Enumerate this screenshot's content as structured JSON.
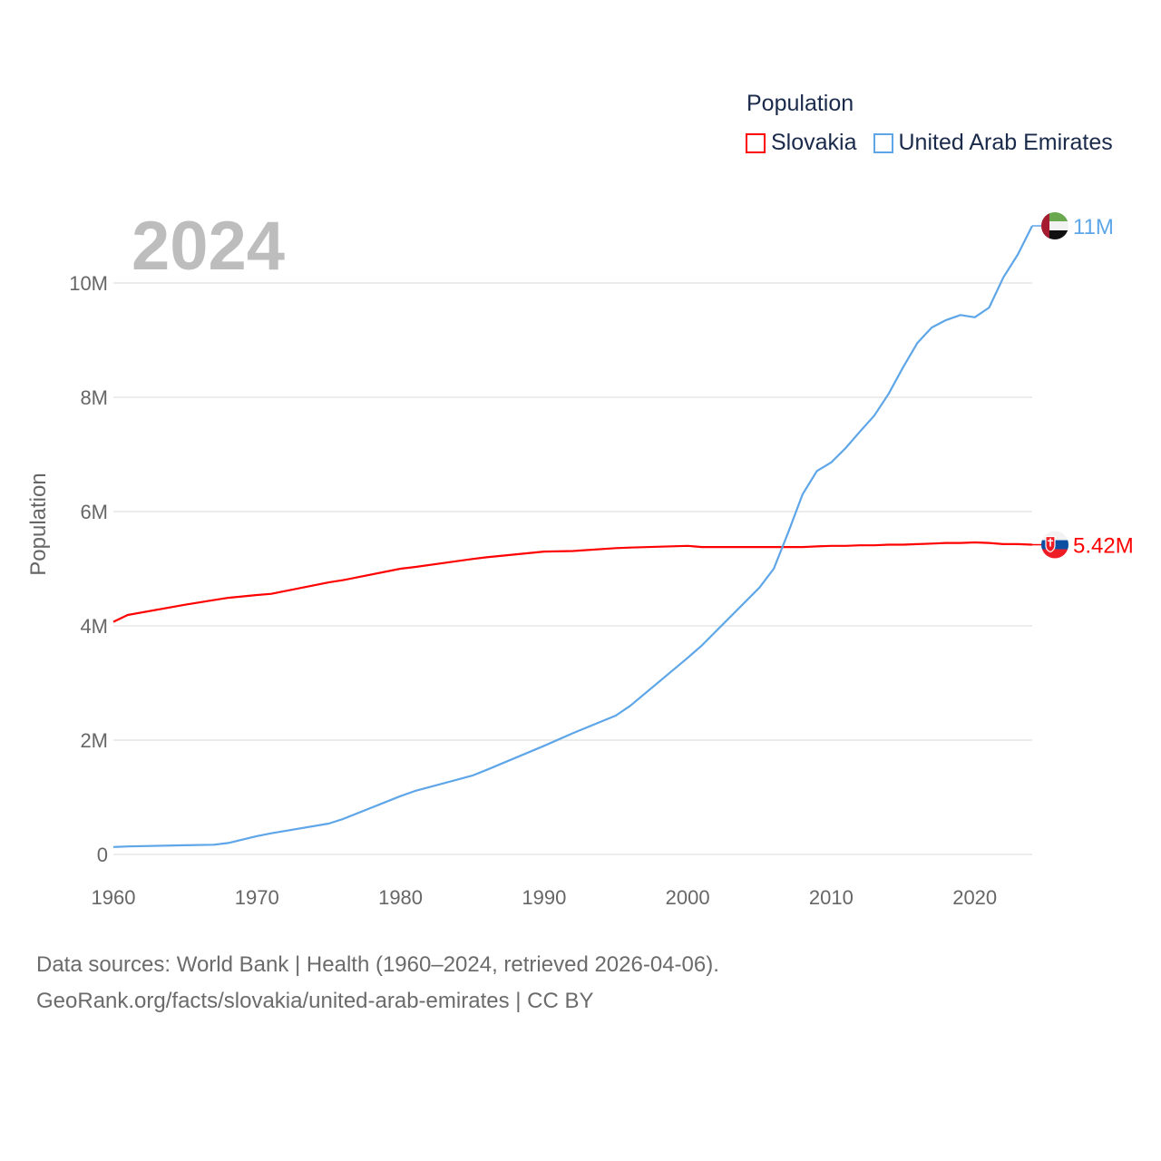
{
  "chart_data": {
    "type": "line",
    "title": "",
    "legend_title": "Population",
    "legend_position": "top-right",
    "current_year_label": "2024",
    "xlabel": "",
    "ylabel": "Population",
    "xlim": [
      1960,
      2024
    ],
    "ylim": [
      0,
      10000000
    ],
    "grid": true,
    "x_ticks": [
      "1960",
      "1970",
      "1980",
      "1990",
      "2000",
      "2010",
      "2020"
    ],
    "y_ticks": [
      {
        "value": 0,
        "label": "0"
      },
      {
        "value": 2000000,
        "label": "2M"
      },
      {
        "value": 4000000,
        "label": "4M"
      },
      {
        "value": 6000000,
        "label": "6M"
      },
      {
        "value": 8000000,
        "label": "8M"
      },
      {
        "value": 10000000,
        "label": "10M"
      }
    ],
    "x": [
      1960,
      1961,
      1965,
      1967,
      1968,
      1970,
      1971,
      1975,
      1976,
      1980,
      1981,
      1985,
      1986,
      1990,
      1992,
      1995,
      1996,
      2000,
      2001,
      2005,
      2006,
      2007,
      2008,
      2009,
      2010,
      2011,
      2012,
      2013,
      2014,
      2015,
      2016,
      2017,
      2018,
      2019,
      2020,
      2021,
      2022,
      2023,
      2024
    ],
    "series": [
      {
        "name": "Slovakia",
        "color": "#ff0000",
        "end_label": "5.42M",
        "flag": "slovakia-flag",
        "values": [
          4.07,
          4.19,
          4.37,
          4.45,
          4.49,
          4.54,
          4.56,
          4.76,
          4.8,
          5.0,
          5.03,
          5.17,
          5.2,
          5.3,
          5.31,
          5.36,
          5.37,
          5.4,
          5.38,
          5.38,
          5.38,
          5.38,
          5.38,
          5.39,
          5.4,
          5.4,
          5.41,
          5.41,
          5.42,
          5.42,
          5.43,
          5.44,
          5.45,
          5.45,
          5.46,
          5.45,
          5.43,
          5.43,
          5.42
        ]
      },
      {
        "name": "United Arab Emirates",
        "color": "#5ea6e8",
        "end_label": "11M",
        "flag": "uae-flag",
        "values": [
          0.13,
          0.14,
          0.16,
          0.17,
          0.2,
          0.32,
          0.37,
          0.54,
          0.62,
          1.02,
          1.11,
          1.38,
          1.48,
          1.9,
          2.12,
          2.43,
          2.6,
          3.44,
          3.66,
          4.67,
          5.0,
          5.63,
          6.3,
          6.71,
          6.86,
          7.11,
          7.4,
          7.68,
          8.06,
          8.52,
          8.95,
          9.22,
          9.35,
          9.44,
          9.4,
          9.57,
          10.1,
          10.5,
          11.0
        ]
      }
    ],
    "value_unit": "millions"
  },
  "footer": {
    "line1": "Data sources: World Bank | Health (1960–2024, retrieved 2026-04-06).",
    "line2": "GeoRank.org/facts/slovakia/united-arab-emirates | CC BY"
  }
}
